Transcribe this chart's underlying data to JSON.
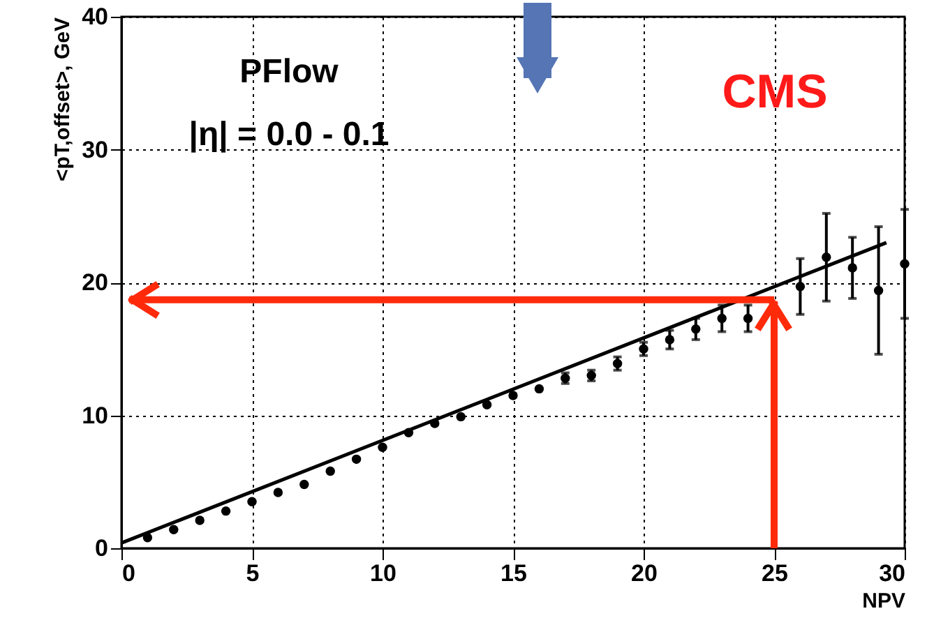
{
  "chart_data": {
    "type": "scatter",
    "xlabel": "NPV",
    "ylabel": "<pT,offset>, GeV",
    "xlim": [
      0,
      30
    ],
    "ylim": [
      0,
      40
    ],
    "xticks": [
      0,
      5,
      10,
      15,
      20,
      25,
      30
    ],
    "yticks": [
      0,
      10,
      20,
      30,
      40
    ],
    "grid": true,
    "annotations": [
      "PFlow",
      "|η| = 0.0 - 0.1",
      "CMS"
    ],
    "series": [
      {
        "color": "#000000",
        "marker": "circle",
        "x": [
          1,
          2,
          3,
          4,
          5,
          6,
          7,
          8,
          9,
          10,
          11,
          12,
          13,
          14,
          15,
          16,
          17,
          18,
          19,
          20,
          21,
          22,
          23,
          24,
          25,
          26,
          27,
          28,
          29,
          30
        ],
        "values": [
          0.8,
          1.4,
          2.1,
          2.8,
          3.5,
          4.2,
          4.8,
          5.8,
          6.7,
          7.6,
          8.7,
          9.4,
          9.9,
          10.8,
          11.5,
          12.0,
          12.8,
          13.0,
          13.9,
          15.0,
          15.7,
          16.5,
          17.3,
          17.3,
          null,
          19.7,
          21.9,
          21.1,
          19.4,
          21.4
        ],
        "errors": [
          null,
          null,
          null,
          null,
          null,
          null,
          null,
          null,
          null,
          null,
          null,
          null,
          null,
          null,
          null,
          null,
          0.4,
          0.4,
          0.5,
          0.5,
          0.7,
          0.8,
          1.0,
          1.0,
          null,
          2.1,
          3.3,
          2.3,
          4.8,
          4.1
        ]
      },
      {
        "type": "line",
        "color": "#000000",
        "x": [
          0,
          29.3
        ],
        "values": [
          0.4,
          23.0
        ]
      },
      {
        "type": "line",
        "color": "#ff2a0a",
        "x": [
          25,
          0.3
        ],
        "values": [
          18.7,
          18.7
        ]
      },
      {
        "type": "line",
        "color": "#ff2a0a",
        "x": [
          25,
          25
        ],
        "values": [
          0,
          18.6
        ]
      }
    ]
  }
}
